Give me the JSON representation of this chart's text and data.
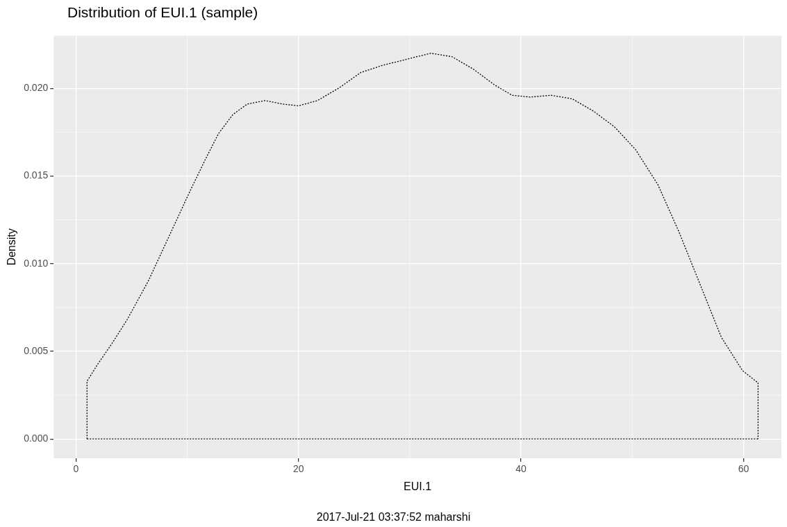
{
  "chart_data": {
    "type": "line",
    "title": "Distribution of EUI.1 (sample)",
    "xlabel": "EUI.1",
    "ylabel": "Density",
    "annotations": [
      "2017-Jul-21 03:37:52 maharshi"
    ],
    "series": [
      {
        "color": "#000000",
        "line_style": "dotted",
        "x": [
          1,
          1,
          2.0,
          3.3,
          4.6,
          6.5,
          8.4,
          10.3,
          11.6,
          12.8,
          14.1,
          15.4,
          17.0,
          18.6,
          20.0,
          21.7,
          23.6,
          25.6,
          27.5,
          30.0,
          31.9,
          33.8,
          35.7,
          37.6,
          39.2,
          40.8,
          42.7,
          44.6,
          46.5,
          48.4,
          50.3,
          52.3,
          54.2,
          56.1,
          58.0,
          59.9,
          61.3,
          61.3
        ],
        "values": [
          0,
          0.0033,
          0.0043,
          0.0055,
          0.0068,
          0.009,
          0.0116,
          0.0142,
          0.0159,
          0.0174,
          0.0185,
          0.0191,
          0.0193,
          0.0191,
          0.019,
          0.0193,
          0.02,
          0.0209,
          0.0213,
          0.0217,
          0.022,
          0.0218,
          0.0211,
          0.0202,
          0.0196,
          0.0195,
          0.0196,
          0.0194,
          0.0187,
          0.0178,
          0.0165,
          0.0145,
          0.0118,
          0.0088,
          0.0058,
          0.0039,
          0.0032,
          0
        ]
      },
      {
        "color": "#000000",
        "line_style": "dotted",
        "x": [
          1,
          61.3
        ],
        "values": [
          0,
          0
        ]
      }
    ],
    "xlim": [
      -2,
      63.4
    ],
    "xticks": [
      0,
      20,
      40,
      60
    ],
    "ylim": [
      -0.0011,
      0.023
    ],
    "yticks": [
      {
        "value": 0,
        "label": "0.000"
      },
      {
        "value": 0.005,
        "label": "0.005"
      },
      {
        "value": 0.01,
        "label": "0.010"
      },
      {
        "value": 0.015,
        "label": "0.015"
      },
      {
        "value": 0.02,
        "label": "0.020"
      }
    ],
    "grid": true,
    "legend": false,
    "marker": "none"
  }
}
